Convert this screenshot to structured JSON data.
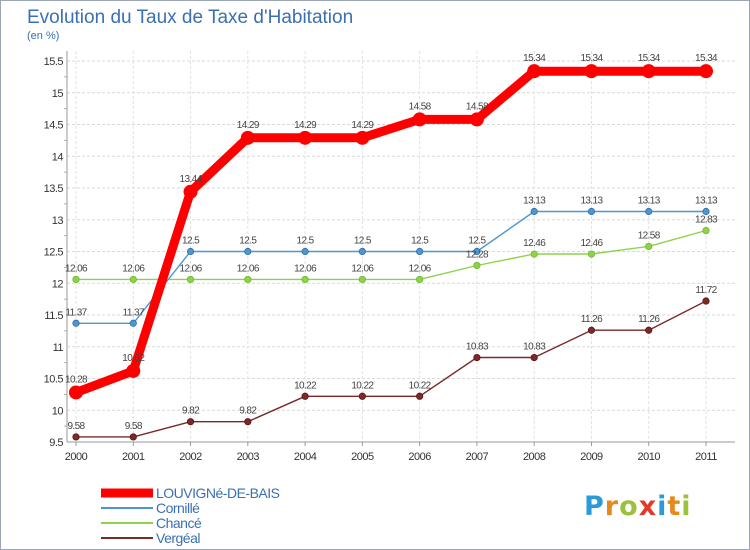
{
  "header": {
    "title": "Evolution du Taux de Taxe d'Habitation",
    "unit": "(en %)"
  },
  "logo": {
    "text": "Proxiti",
    "colors": [
      "#2a9ad8",
      "#e58a1c",
      "#9cc13a",
      "#e23a2a",
      "#2a9ad8",
      "#e58a1c",
      "#9cc13a"
    ]
  },
  "chart_data": {
    "type": "line",
    "title": "Evolution du Taux de Taxe d'Habitation",
    "subtitle": "(en %)",
    "xlabel": "",
    "ylabel": "",
    "x": [
      "2000",
      "2001",
      "2002",
      "2003",
      "2004",
      "2005",
      "2006",
      "2007",
      "2008",
      "2009",
      "2010",
      "2011"
    ],
    "ylim": [
      9.5,
      15.5
    ],
    "yticks": [
      "9.5",
      "10",
      "10.5",
      "11",
      "11.5",
      "12",
      "12.5",
      "13",
      "13.5",
      "14",
      "14.5",
      "15",
      "15.5"
    ],
    "grid": "horizontal",
    "legend_position": "bottom-left",
    "series": [
      {
        "name": "LOUVIGNé-DE-BAIS",
        "color": "#ff0000",
        "values": [
          10.28,
          10.62,
          13.44,
          14.29,
          14.29,
          14.29,
          14.58,
          14.58,
          15.34,
          15.34,
          15.34,
          15.34
        ],
        "labels": [
          "10.28",
          "10.62",
          "13.44",
          "14.29",
          "14.29",
          "14.29",
          "14.58",
          "14.58",
          "15.34",
          "15.34",
          "15.34",
          "15.34"
        ]
      },
      {
        "name": "Cornillé",
        "color": "#4f96d0",
        "values": [
          11.37,
          11.37,
          12.5,
          12.5,
          12.5,
          12.5,
          12.5,
          12.5,
          13.13,
          13.13,
          13.13,
          13.13
        ],
        "labels": [
          "11.37",
          "11.37",
          "12.5",
          "12.5",
          "12.5",
          "12.5",
          "12.5",
          "12.5",
          "13.13",
          "13.13",
          "13.13",
          "13.13"
        ]
      },
      {
        "name": "Chancé",
        "color": "#8ed24a",
        "values": [
          12.06,
          12.06,
          12.06,
          12.06,
          12.06,
          12.06,
          12.06,
          12.28,
          12.46,
          12.46,
          12.58,
          12.83
        ],
        "labels": [
          "12.06",
          "12.06",
          "12.06",
          "12.06",
          "12.06",
          "12.06",
          "12.06",
          "12.28",
          "12.46",
          "12.46",
          "12.58",
          "12.83"
        ]
      },
      {
        "name": "Vergéal",
        "color": "#7b2a2a",
        "values": [
          9.58,
          9.58,
          9.82,
          9.82,
          10.22,
          10.22,
          10.22,
          10.83,
          10.83,
          11.26,
          11.26,
          11.72
        ],
        "labels": [
          "9.58",
          "9.58",
          "9.82",
          "9.82",
          "10.22",
          "10.22",
          "10.22",
          "10.83",
          "10.83",
          "11.26",
          "11.26",
          "11.72"
        ]
      }
    ]
  }
}
